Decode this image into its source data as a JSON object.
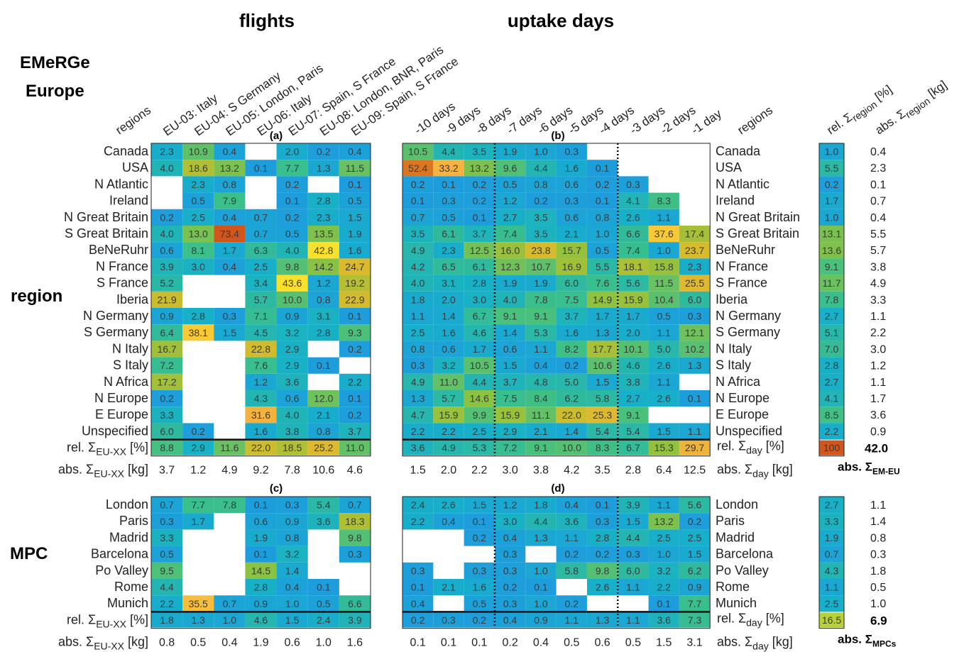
{
  "figure": {
    "brand": [
      "EMeRGe",
      "Europe"
    ],
    "group_titles": {
      "flights": "flights",
      "days": "uptake days"
    },
    "side_labels": {
      "region": "region",
      "mpc": "MPC"
    },
    "panel_labels": {
      "a": "(a)",
      "b": "(b)",
      "c": "(c)",
      "d": "(d)"
    },
    "regions_header": "regions",
    "total_labels": {
      "rel_region": "rel. Σ",
      "rel_region_sub": "region",
      "rel_region_unit": " [%]",
      "abs_region": "abs. Σ",
      "abs_region_sub": "region",
      "abs_region_unit": " [kg]",
      "rel_flight": "rel. Σ",
      "rel_flight_sub": "EU-XX",
      "rel_flight_unit": " [%]",
      "abs_flight": "abs. Σ",
      "abs_flight_sub": "EU-XX",
      "abs_flight_unit": " [kg]",
      "rel_day": "rel. Σ",
      "rel_day_sub": "day",
      "rel_day_unit": " [%]",
      "abs_day": "abs. Σ",
      "abs_day_sub": "day",
      "abs_day_unit": " [kg]",
      "abs_em_eu": "abs. Σ",
      "abs_em_eu_sub": "EM-EU",
      "abs_mpcs": "abs. Σ",
      "abs_mpcs_sub": "MPCs"
    },
    "grand_totals": {
      "europe_rel": "100",
      "europe_abs": "42.0",
      "mpc_rel": "16.5",
      "mpc_abs": "6.9"
    }
  },
  "chart_data": {
    "type": "heatmap",
    "color_scale": {
      "min": 0,
      "max": 55,
      "stops": [
        "#1f9be0",
        "#17b0c8",
        "#3bbf8a",
        "#8fc23e",
        "#d6bb2c",
        "#f7b040",
        "#fbe32c",
        "#d2561b"
      ]
    },
    "flights": [
      "EU-03: Italy",
      "EU-04: S Germany",
      "EU-05: London, Paris",
      "EU-06: Italy",
      "EU-07: Spain, S France",
      "EU-08: London, BNR, Paris",
      "EU-09: Spain, S France"
    ],
    "days": [
      "-10 days",
      "-9 days",
      "-8 days",
      "-7 days",
      "-6 days",
      "-5 days",
      "-4 days",
      "-3 days",
      "-2 days",
      "-1 day"
    ],
    "regions": [
      "Canada",
      "USA",
      "N Atlantic",
      "Ireland",
      "N Great Britain",
      "S Great Britain",
      "BeNeRuhr",
      "N France",
      "S France",
      "Iberia",
      "N Germany",
      "S Germany",
      "N Italy",
      "S Italy",
      "N Africa",
      "N Europe",
      "E Europe",
      "Unspecified"
    ],
    "mpcs": [
      "London",
      "Paris",
      "Madrid",
      "Barcelona",
      "Po Valley",
      "Rome",
      "Munich"
    ],
    "panel_a": [
      [
        "2.3",
        "10.9",
        "0.4",
        null,
        "2.0",
        "0.2",
        "0.4"
      ],
      [
        "4.0",
        "18.6",
        "13.2",
        "0.1",
        "7.7",
        "1.3",
        "11.5"
      ],
      [
        null,
        "2.3",
        "0.8",
        null,
        "0.2",
        null,
        "0.1"
      ],
      [
        null,
        "0.5",
        "7.9",
        null,
        "0.1",
        "2.8",
        "0.5"
      ],
      [
        "0.2",
        "2.5",
        "0.4",
        "0.7",
        "0.2",
        "2.3",
        "1.5"
      ],
      [
        "4.0",
        "13.0",
        "73.4",
        "0.7",
        "0.5",
        "13.5",
        "1.9"
      ],
      [
        "0.6",
        "8.1",
        "1.7",
        "6.3",
        "4.0",
        "42.8",
        "1.6"
      ],
      [
        "3.9",
        "3.0",
        "0.4",
        "2.5",
        "9.8",
        "14.2",
        "24.7"
      ],
      [
        "5.2",
        null,
        null,
        "3.4",
        "43.6",
        "1.2",
        "19.2"
      ],
      [
        "21.9",
        null,
        null,
        "5.7",
        "10.0",
        "0.8",
        "22.9"
      ],
      [
        "0.9",
        "2.8",
        "0.3",
        "7.1",
        "0.9",
        "3.1",
        "0.1"
      ],
      [
        "6.4",
        "38.1",
        "1.5",
        "4.5",
        "3.2",
        "2.8",
        "9.3"
      ],
      [
        "16.7",
        null,
        null,
        "22.8",
        "2.9",
        null,
        "0.2"
      ],
      [
        "7.2",
        null,
        null,
        "7.6",
        "2.9",
        "0.1",
        null
      ],
      [
        "17.2",
        null,
        null,
        "1.2",
        "3.6",
        null,
        "2.2"
      ],
      [
        "0.2",
        null,
        null,
        "4.3",
        "0.6",
        "12.0",
        "0.1"
      ],
      [
        "3.3",
        null,
        null,
        "31.6",
        "4.0",
        "2.1",
        "0.2"
      ],
      [
        "6.0",
        "0.2",
        null,
        "1.6",
        "3.8",
        "0.8",
        "3.7"
      ]
    ],
    "panel_a_rel": [
      "8.8",
      "2.9",
      "11.6",
      "22.0",
      "18.5",
      "25.2",
      "11.0"
    ],
    "panel_a_abs": [
      "3.7",
      "1.2",
      "4.9",
      "9.2",
      "7.8",
      "10.6",
      "4.6"
    ],
    "panel_b": [
      [
        "10.5",
        "4.4",
        "3.5",
        "1.9",
        "1.0",
        "0.3",
        null,
        null,
        null,
        null
      ],
      [
        "52.4",
        "33.2",
        "13.2",
        "9.6",
        "4.4",
        "1.6",
        "0.1",
        null,
        null,
        null
      ],
      [
        "0.2",
        "0.1",
        "0.2",
        "0.5",
        "0.8",
        "0.6",
        "0.2",
        "0.3",
        null,
        null
      ],
      [
        "0.1",
        "0.3",
        "0.2",
        "1.2",
        "0.2",
        "0.3",
        "0.1",
        "4.1",
        "8.3",
        null
      ],
      [
        "0.7",
        "0.5",
        "0.1",
        "2.7",
        "3.5",
        "0.6",
        "0.8",
        "2.6",
        "1.1",
        null
      ],
      [
        "3.5",
        "6.1",
        "3.7",
        "7.4",
        "3.5",
        "2.1",
        "1.0",
        "6.6",
        "37.6",
        "17.4"
      ],
      [
        "4.9",
        "2.3",
        "12.5",
        "16.0",
        "23.8",
        "15.7",
        "0.5",
        "7.4",
        "1.0",
        "23.7"
      ],
      [
        "4.2",
        "6.5",
        "6.1",
        "12.3",
        "10.7",
        "16.9",
        "5.5",
        "18.1",
        "15.8",
        "2.3"
      ],
      [
        "4.0",
        "3.1",
        "2.8",
        "1.9",
        "1.9",
        "6.0",
        "7.6",
        "5.6",
        "11.5",
        "25.5"
      ],
      [
        "1.8",
        "2.0",
        "3.0",
        "4.0",
        "7.8",
        "7.5",
        "14.9",
        "15.9",
        "10.4",
        "6.0"
      ],
      [
        "1.1",
        "1.4",
        "6.7",
        "9.1",
        "9.1",
        "3.7",
        "1.7",
        "1.7",
        "0.5",
        "0.3"
      ],
      [
        "2.5",
        "1.6",
        "4.6",
        "1.4",
        "5.3",
        "1.6",
        "1.3",
        "2.0",
        "1.1",
        "12.1"
      ],
      [
        "0.8",
        "0.6",
        "1.7",
        "0.6",
        "1.1",
        "8.2",
        "17.7",
        "10.1",
        "5.0",
        "10.2"
      ],
      [
        "0.3",
        "3.2",
        "10.5",
        "1.5",
        "0.4",
        "0.2",
        "10.6",
        "4.6",
        "2.6",
        "1.3"
      ],
      [
        "4.9",
        "11.0",
        "4.4",
        "3.7",
        "4.8",
        "5.0",
        "1.5",
        "3.8",
        "1.1",
        null
      ],
      [
        "1.3",
        "5.7",
        "14.6",
        "7.5",
        "8.4",
        "6.2",
        "5.8",
        "2.7",
        "2.6",
        "0.1"
      ],
      [
        "4.7",
        "15.9",
        "9.9",
        "15.9",
        "11.1",
        "22.0",
        "25.3",
        "9.1",
        null,
        null
      ],
      [
        "2.2",
        "2.2",
        "2.5",
        "2.9",
        "2.1",
        "1.4",
        "5.4",
        "5.4",
        "1.5",
        "1.1"
      ]
    ],
    "panel_b_rel": [
      "3.6",
      "4.9",
      "5.3",
      "7.2",
      "9.1",
      "10.0",
      "8.3",
      "6.7",
      "15.3",
      "29.7"
    ],
    "panel_b_abs": [
      "1.5",
      "2.0",
      "2.2",
      "3.0",
      "3.8",
      "4.2",
      "3.5",
      "2.8",
      "6.4",
      "12.5"
    ],
    "region_rel": [
      "1.0",
      "5.5",
      "0.2",
      "1.7",
      "1.0",
      "13.1",
      "13.6",
      "9.1",
      "11.7",
      "7.8",
      "2.7",
      "5.1",
      "7.0",
      "2.8",
      "2.7",
      "4.1",
      "8.5",
      "2.2"
    ],
    "region_abs": [
      "0.4",
      "2.3",
      "0.1",
      "0.7",
      "0.4",
      "5.5",
      "5.7",
      "3.8",
      "4.9",
      "3.3",
      "1.1",
      "2.2",
      "3.0",
      "1.2",
      "1.1",
      "1.7",
      "3.6",
      "0.9"
    ],
    "panel_c": [
      [
        "0.7",
        "7.7",
        "7.8",
        "0.1",
        "0.3",
        "5.4",
        "0.7"
      ],
      [
        "0.3",
        "1.7",
        null,
        "0.6",
        "0.9",
        "3.6",
        "18.3"
      ],
      [
        "3.3",
        null,
        null,
        "1.9",
        "0.8",
        null,
        "9.8"
      ],
      [
        "0.5",
        null,
        null,
        "0.1",
        "3.2",
        null,
        "0.3"
      ],
      [
        "9.5",
        null,
        null,
        "14.5",
        "1.4",
        null,
        null
      ],
      [
        "4.4",
        null,
        null,
        "2.8",
        "0.4",
        "0.1",
        null
      ],
      [
        "2.2",
        "35.5",
        "0.7",
        "0.9",
        "1.0",
        "0.5",
        "6.6"
      ]
    ],
    "panel_c_rel": [
      "1.8",
      "1.3",
      "1.0",
      "4.6",
      "1.5",
      "2.4",
      "3.9"
    ],
    "panel_c_abs": [
      "0.8",
      "0.5",
      "0.4",
      "1.9",
      "0.6",
      "1.0",
      "1.6"
    ],
    "panel_d": [
      [
        "2.4",
        "2.6",
        "1.5",
        "1.2",
        "1.8",
        "0.4",
        "0.1",
        "3.9",
        "1.1",
        "5.6"
      ],
      [
        "2.2",
        "0.4",
        "0.1",
        "3.0",
        "4.4",
        "3.6",
        "0.3",
        "1.5",
        "13.2",
        "0.2"
      ],
      [
        null,
        null,
        "0.2",
        "0.4",
        "1.3",
        "1.1",
        "2.8",
        "4.4",
        "2.5",
        "2.5"
      ],
      [
        null,
        null,
        null,
        "0.3",
        null,
        "0.2",
        "0.2",
        "0.3",
        "1.0",
        "1.5"
      ],
      [
        "0.3",
        null,
        "0.3",
        "0.3",
        "1.0",
        "5.8",
        "9.8",
        "6.0",
        "3.2",
        "6.2"
      ],
      [
        "0.1",
        "2.1",
        "1.6",
        "0.2",
        "0.1",
        null,
        "2.6",
        "1.1",
        "2.2",
        "0.9"
      ],
      [
        "0.4",
        null,
        "0.5",
        "0.3",
        "1.0",
        "0.2",
        null,
        null,
        "0.1",
        "7.7"
      ]
    ],
    "panel_d_rel": [
      "0.2",
      "0.3",
      "0.2",
      "0.4",
      "0.9",
      "1.1",
      "1.3",
      "1.1",
      "3.6",
      "7.3"
    ],
    "panel_d_abs": [
      "0.1",
      "0.1",
      "0.1",
      "0.2",
      "0.4",
      "0.5",
      "0.6",
      "0.5",
      "1.5",
      "3.1"
    ],
    "mpc_rel": [
      "2.7",
      "3.3",
      "1.9",
      "0.7",
      "4.3",
      "1.1",
      "2.5"
    ],
    "mpc_abs": [
      "1.1",
      "1.4",
      "0.8",
      "0.3",
      "1.8",
      "0.5",
      "1.0"
    ]
  }
}
